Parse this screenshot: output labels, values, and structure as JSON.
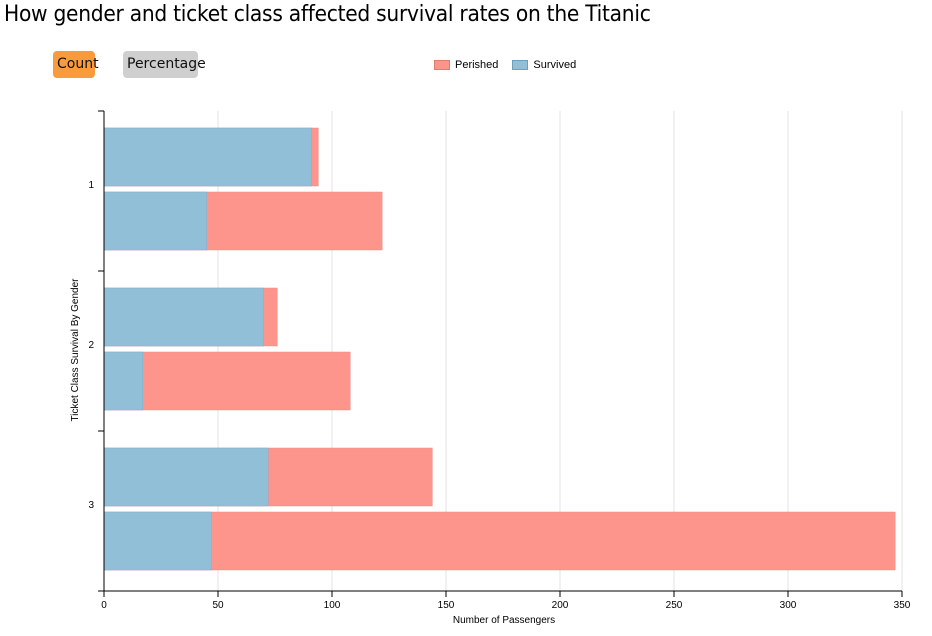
{
  "header": {
    "title": "How gender and ticket class affected survival rates on the Titanic"
  },
  "controls": {
    "count_label": "Count",
    "percentage_label": "Percentage",
    "active": "Count"
  },
  "colors": {
    "survived": "#92bfd8",
    "perished": "#fd958c",
    "count_active": "#f99b3d",
    "percentage_inactive": "#cfcfcf"
  },
  "chart_data": {
    "type": "bar",
    "orientation": "horizontal",
    "stacked": true,
    "legend": [
      "Perished",
      "Survived"
    ],
    "legend_position": "top",
    "xlabel": "Number of Passengers",
    "ylabel": "Ticket Class Survival By Gender",
    "xlim": [
      0,
      350
    ],
    "xticks": [
      0,
      50,
      100,
      150,
      200,
      250,
      300,
      350
    ],
    "grid": "vertical",
    "categories": [
      "1",
      "2",
      "3"
    ],
    "groups": [
      {
        "class": "1",
        "bars": [
          {
            "survived": 91,
            "perished": 3
          },
          {
            "survived": 45,
            "perished": 77
          }
        ]
      },
      {
        "class": "2",
        "bars": [
          {
            "survived": 70,
            "perished": 6
          },
          {
            "survived": 17,
            "perished": 91
          }
        ]
      },
      {
        "class": "3",
        "bars": [
          {
            "survived": 72,
            "perished": 72
          },
          {
            "survived": 47,
            "perished": 300
          }
        ]
      }
    ]
  }
}
